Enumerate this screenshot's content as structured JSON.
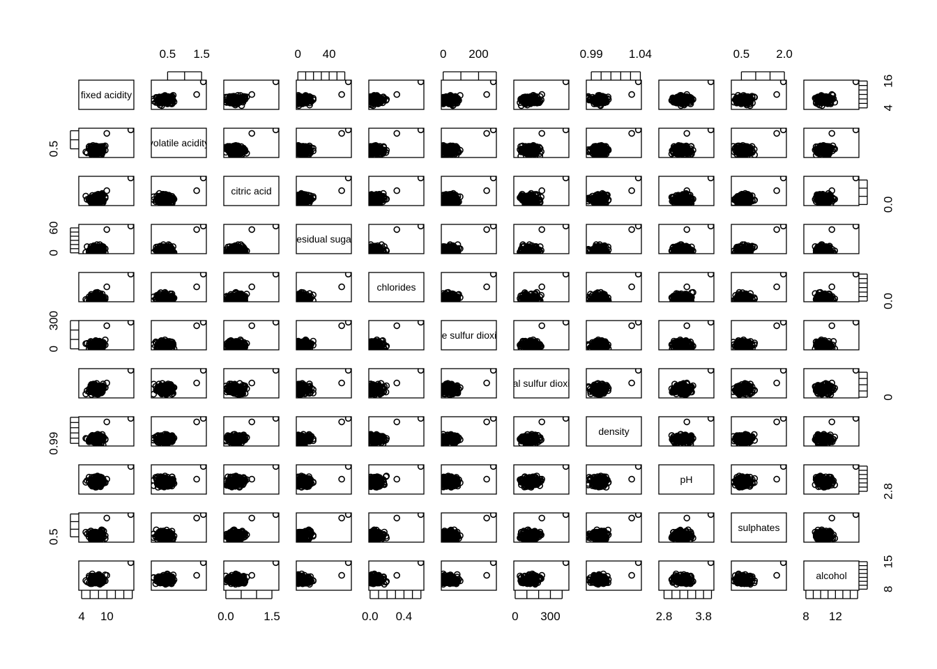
{
  "chart_data": {
    "type": "scatter",
    "subtype": "scatterplot-matrix",
    "title": "",
    "grid": false,
    "point_style": "open-circle",
    "point_color": "#000000",
    "variables": [
      {
        "name": "fixed acidity",
        "range": [
          3.8,
          15.9
        ],
        "ticks": [
          4,
          6,
          8,
          10,
          12,
          14,
          16
        ],
        "axis_labels": {
          "bottom": [
            "4",
            "10"
          ],
          "right": [
            "4",
            "16"
          ]
        }
      },
      {
        "name": "volatile acidity",
        "range": [
          0.08,
          1.58
        ],
        "ticks": [
          0.5,
          1.0,
          1.5
        ],
        "axis_labels": {
          "top": [
            "0.5",
            "1.5"
          ],
          "left": [
            "0.5"
          ]
        }
      },
      {
        "name": "citric acid",
        "range": [
          0.0,
          1.66
        ],
        "ticks": [
          0.0,
          0.5,
          1.0,
          1.5
        ],
        "axis_labels": {
          "bottom": [
            "0.0",
            "1.5"
          ],
          "right": [
            "0.0"
          ]
        }
      },
      {
        "name": "residual sugar",
        "range": [
          0.6,
          65.8
        ],
        "ticks": [
          0,
          10,
          20,
          30,
          40,
          50,
          60
        ],
        "axis_labels": {
          "top": [
            "0",
            "40"
          ],
          "left": [
            "0",
            "60"
          ]
        }
      },
      {
        "name": "chlorides",
        "range": [
          0.009,
          0.611
        ],
        "ticks": [
          0.0,
          0.1,
          0.2,
          0.3,
          0.4,
          0.5,
          0.6
        ],
        "axis_labels": {
          "bottom": [
            "0.0",
            "0.4"
          ],
          "right": [
            "0.0"
          ]
        }
      },
      {
        "name": "free sulfur dioxide",
        "range": [
          1,
          289
        ],
        "ticks": [
          0,
          100,
          200,
          300
        ],
        "axis_labels": {
          "top": [
            "0",
            "200"
          ],
          "left": [
            "0",
            "300"
          ]
        }
      },
      {
        "name": "total sulfur dioxide",
        "range": [
          6,
          440
        ],
        "ticks": [
          0,
          100,
          200,
          300,
          400
        ],
        "axis_labels": {
          "bottom": [
            "0",
            "300"
          ],
          "right": [
            "0"
          ]
        }
      },
      {
        "name": "density",
        "range": [
          0.987,
          1.039
        ],
        "ticks": [
          0.99,
          1.0,
          1.01,
          1.02,
          1.03,
          1.04
        ],
        "axis_labels": {
          "top": [
            "0.99",
            "1.04"
          ],
          "left": [
            "0.99"
          ]
        }
      },
      {
        "name": "pH",
        "range": [
          2.72,
          4.01
        ],
        "ticks": [
          2.8,
          3.0,
          3.2,
          3.4,
          3.6,
          3.8,
          4.0
        ],
        "axis_labels": {
          "bottom": [
            "2.8",
            "3.8"
          ],
          "right": [
            "2.8"
          ]
        }
      },
      {
        "name": "sulphates",
        "range": [
          0.22,
          2.0
        ],
        "ticks": [
          0.5,
          1.0,
          1.5,
          2.0
        ],
        "axis_labels": {
          "top": [
            "0.5",
            "2.0"
          ],
          "left": [
            "0.5"
          ]
        }
      },
      {
        "name": "alcohol",
        "range": [
          8.0,
          14.9
        ],
        "ticks": [
          8,
          9,
          10,
          11,
          12,
          13,
          14,
          15
        ],
        "axis_labels": {
          "bottom": [
            "8",
            "12"
          ],
          "right": [
            "8",
            "15"
          ]
        }
      }
    ]
  }
}
